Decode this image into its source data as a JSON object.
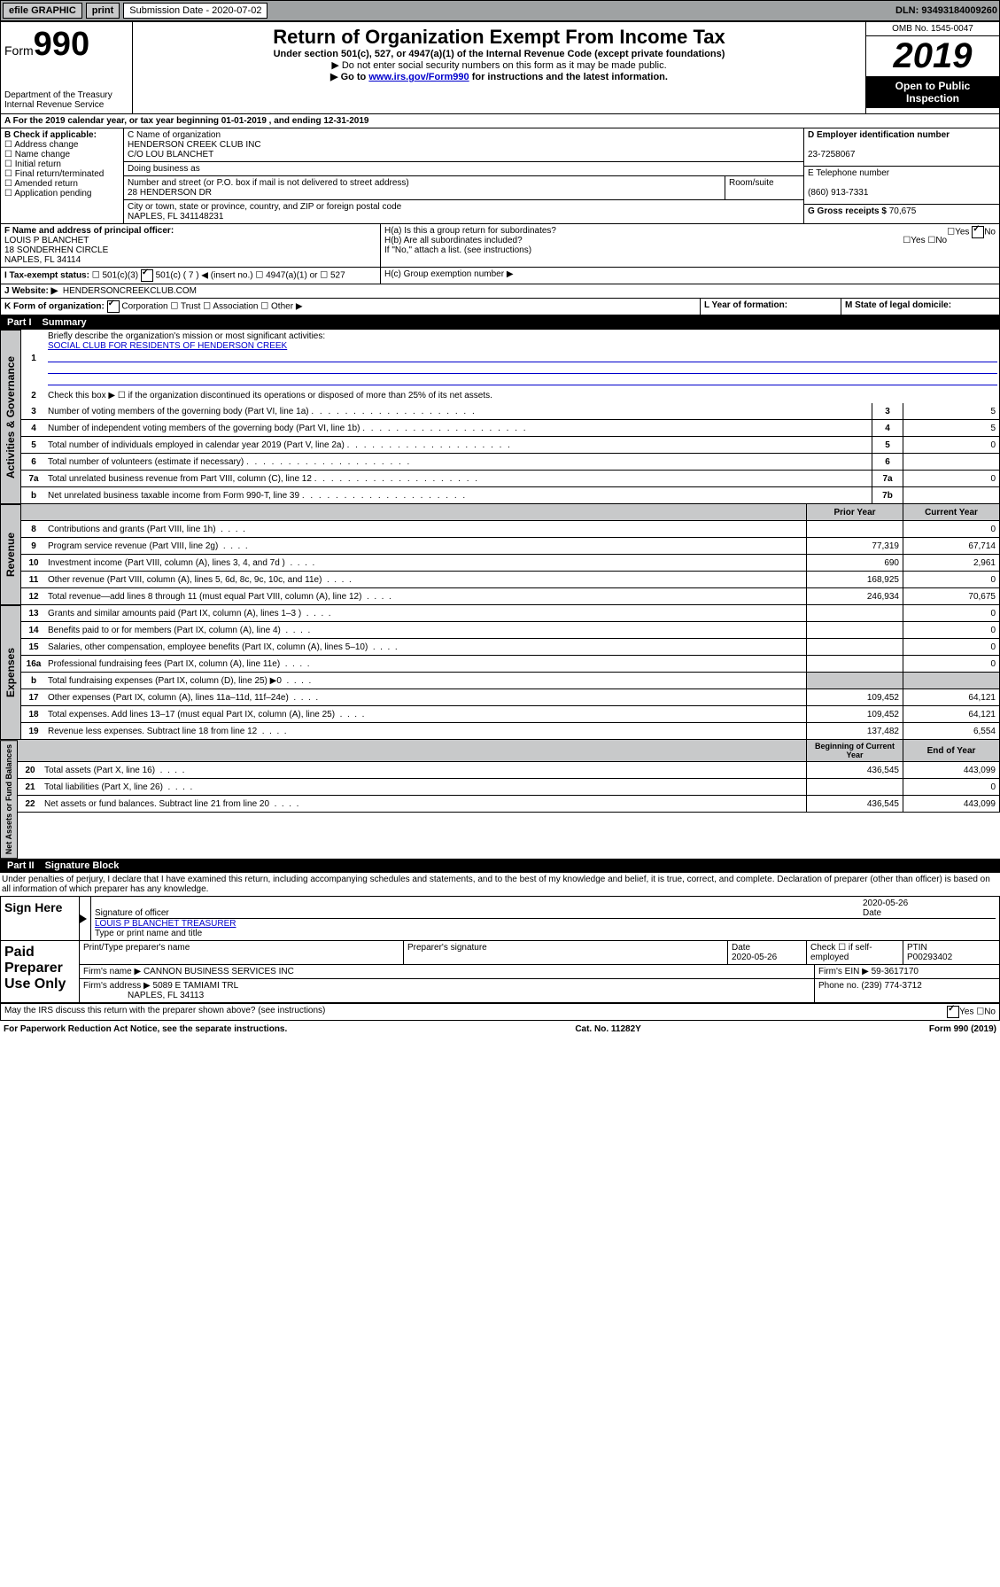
{
  "topbar": {
    "efile": "efile GRAPHIC",
    "print": "print",
    "subdate_label": "Submission Date - 2020-07-02",
    "dln": "DLN: 93493184009260"
  },
  "header": {
    "form_label": "Form",
    "form_num": "990",
    "dept": "Department of the Treasury\nInternal Revenue Service",
    "title": "Return of Organization Exempt From Income Tax",
    "subtitle": "Under section 501(c), 527, or 4947(a)(1) of the Internal Revenue Code (except private foundations)",
    "note1": "▶ Do not enter social security numbers on this form as it may be made public.",
    "note2_pre": "▶ Go to ",
    "note2_link": "www.irs.gov/Form990",
    "note2_post": " for instructions and the latest information.",
    "omb": "OMB No. 1545-0047",
    "year": "2019",
    "openinsp": "Open to Public Inspection"
  },
  "period": {
    "text": "For the 2019 calendar year, or tax year beginning 01-01-2019   , and ending 12-31-2019"
  },
  "boxA": {
    "label": "A",
    "nyrprd": "",
    "sectB": "B Check if applicable:",
    "opts": [
      "Address change",
      "Name change",
      "Initial return",
      "Final return/terminated",
      "Amended return",
      "Application pending"
    ]
  },
  "boxC": {
    "label": "C Name of organization",
    "org": "HENDERSON CREEK CLUB INC",
    "co": "C/O LOU BLANCHET",
    "dba": "Doing business as",
    "addr_label": "Number and street (or P.O. box if mail is not delivered to street address)",
    "room": "Room/suite",
    "addr": "28 HENDERSON DR",
    "city_label": "City or town, state or province, country, and ZIP or foreign postal code",
    "city": "NAPLES, FL  341148231"
  },
  "boxD": {
    "label": "D Employer identification number",
    "val": "23-7258067"
  },
  "boxE": {
    "label": "E Telephone number",
    "val": "(860) 913-7331"
  },
  "boxG": {
    "label": "G Gross receipts $",
    "val": "70,675"
  },
  "boxF": {
    "label": "F Name and address of principal officer:",
    "name": "LOUIS P BLANCHET",
    "addr": "18 SONDERHEN CIRCLE",
    "city": "NAPLES, FL  34114"
  },
  "boxH": {
    "ha": "H(a)  Is this a group return for subordinates?",
    "hb": "H(b)  Are all subordinates included?",
    "hbnote": "If \"No,\" attach a list. (see instructions)",
    "hc": "H(c)  Group exemption number ▶",
    "yes": "Yes",
    "no": "No"
  },
  "boxI": {
    "label": "I   Tax-exempt status:",
    "c3": "501(c)(3)",
    "c": "501(c) ( 7 ) ◀ (insert no.)",
    "a1": "4947(a)(1) or",
    "527": "527"
  },
  "boxJ": {
    "label": "J   Website: ▶",
    "val": "HENDERSONCREEKCLUB.COM"
  },
  "boxK": {
    "label": "K Form of organization:",
    "corp": "Corporation",
    "trust": "Trust",
    "assoc": "Association",
    "other": "Other ▶"
  },
  "boxL": {
    "label": "L Year of formation:"
  },
  "boxM": {
    "label": "M State of legal domicile:"
  },
  "part1": {
    "label": "Part I",
    "title": "Summary"
  },
  "line1": {
    "num": "1",
    "desc": "Briefly describe the organization's mission or most significant activities:",
    "val": "SOCIAL CLUB FOR RESIDENTS OF HENDERSON CREEK"
  },
  "line2": {
    "num": "2",
    "desc": "Check this box ▶ ☐  if the organization discontinued its operations or disposed of more than 25% of its net assets."
  },
  "lines_gov": [
    {
      "num": "3",
      "desc": "Number of voting members of the governing body (Part VI, line 1a)",
      "box": "3",
      "val": "5"
    },
    {
      "num": "4",
      "desc": "Number of independent voting members of the governing body (Part VI, line 1b)",
      "box": "4",
      "val": "5"
    },
    {
      "num": "5",
      "desc": "Total number of individuals employed in calendar year 2019 (Part V, line 2a)",
      "box": "5",
      "val": "0"
    },
    {
      "num": "6",
      "desc": "Total number of volunteers (estimate if necessary)",
      "box": "6",
      "val": ""
    },
    {
      "num": "7a",
      "desc": "Total unrelated business revenue from Part VIII, column (C), line 12",
      "box": "7a",
      "val": "0"
    },
    {
      "num": "b",
      "desc": "Net unrelated business taxable income from Form 990-T, line 39",
      "box": "7b",
      "val": ""
    }
  ],
  "col_hdrs": {
    "prior": "Prior Year",
    "current": "Current Year"
  },
  "lines_rev": [
    {
      "num": "8",
      "desc": "Contributions and grants (Part VIII, line 1h)",
      "prior": "",
      "curr": "0"
    },
    {
      "num": "9",
      "desc": "Program service revenue (Part VIII, line 2g)",
      "prior": "77,319",
      "curr": "67,714"
    },
    {
      "num": "10",
      "desc": "Investment income (Part VIII, column (A), lines 3, 4, and 7d )",
      "prior": "690",
      "curr": "2,961"
    },
    {
      "num": "11",
      "desc": "Other revenue (Part VIII, column (A), lines 5, 6d, 8c, 9c, 10c, and 11e)",
      "prior": "168,925",
      "curr": "0"
    },
    {
      "num": "12",
      "desc": "Total revenue—add lines 8 through 11 (must equal Part VIII, column (A), line 12)",
      "prior": "246,934",
      "curr": "70,675"
    }
  ],
  "lines_exp": [
    {
      "num": "13",
      "desc": "Grants and similar amounts paid (Part IX, column (A), lines 1–3 )",
      "prior": "",
      "curr": "0"
    },
    {
      "num": "14",
      "desc": "Benefits paid to or for members (Part IX, column (A), line 4)",
      "prior": "",
      "curr": "0"
    },
    {
      "num": "15",
      "desc": "Salaries, other compensation, employee benefits (Part IX, column (A), lines 5–10)",
      "prior": "",
      "curr": "0"
    },
    {
      "num": "16a",
      "desc": "Professional fundraising fees (Part IX, column (A), line 11e)",
      "prior": "",
      "curr": "0"
    },
    {
      "num": "b",
      "desc": "Total fundraising expenses (Part IX, column (D), line 25) ▶0",
      "prior": "",
      "curr": "",
      "gray": true
    },
    {
      "num": "17",
      "desc": "Other expenses (Part IX, column (A), lines 11a–11d, 11f–24e)",
      "prior": "109,452",
      "curr": "64,121"
    },
    {
      "num": "18",
      "desc": "Total expenses. Add lines 13–17 (must equal Part IX, column (A), line 25)",
      "prior": "109,452",
      "curr": "64,121"
    },
    {
      "num": "19",
      "desc": "Revenue less expenses. Subtract line 18 from line 12",
      "prior": "137,482",
      "curr": "6,554"
    }
  ],
  "col_hdrs2": {
    "begin": "Beginning of Current Year",
    "end": "End of Year"
  },
  "lines_na": [
    {
      "num": "20",
      "desc": "Total assets (Part X, line 16)",
      "prior": "436,545",
      "curr": "443,099"
    },
    {
      "num": "21",
      "desc": "Total liabilities (Part X, line 26)",
      "prior": "",
      "curr": "0"
    },
    {
      "num": "22",
      "desc": "Net assets or fund balances. Subtract line 21 from line 20",
      "prior": "436,545",
      "curr": "443,099"
    }
  ],
  "part2": {
    "label": "Part II",
    "title": "Signature Block"
  },
  "perjury": "Under penalties of perjury, I declare that I have examined this return, including accompanying schedules and statements, and to the best of my knowledge and belief, it is true, correct, and complete. Declaration of preparer (other than officer) is based on all information of which preparer has any knowledge.",
  "sign": {
    "here": "Sign Here",
    "sigoff": "Signature of officer",
    "date": "2020-05-26",
    "datelbl": "Date",
    "name": "LOUIS P BLANCHET  TREASURER",
    "namelbl": "Type or print name and title"
  },
  "paid": {
    "label": "Paid Preparer Use Only",
    "prepname_lbl": "Print/Type preparer's name",
    "prepsig_lbl": "Preparer's signature",
    "date_lbl": "Date",
    "date": "2020-05-26",
    "check_lbl": "Check ☐ if self-employed",
    "ptin_lbl": "PTIN",
    "ptin": "P00293402",
    "firmname_lbl": "Firm's name    ▶",
    "firmname": "CANNON BUSINESS SERVICES INC",
    "firmein_lbl": "Firm's EIN ▶",
    "firmein": "59-3617170",
    "firmaddr_lbl": "Firm's address ▶",
    "firmaddr": "5089 E TAMIAMI TRL",
    "firmcity": "NAPLES, FL  34113",
    "phone_lbl": "Phone no.",
    "phone": "(239) 774-3712"
  },
  "discuss": {
    "text": "May the IRS discuss this return with the preparer shown above? (see instructions)",
    "yes": "Yes",
    "no": "No"
  },
  "footer": {
    "left": "For Paperwork Reduction Act Notice, see the separate instructions.",
    "mid": "Cat. No. 11282Y",
    "right": "Form 990 (2019)"
  },
  "vtabs": {
    "gov": "Activities & Governance",
    "rev": "Revenue",
    "exp": "Expenses",
    "na": "Net Assets or Fund Balances"
  }
}
